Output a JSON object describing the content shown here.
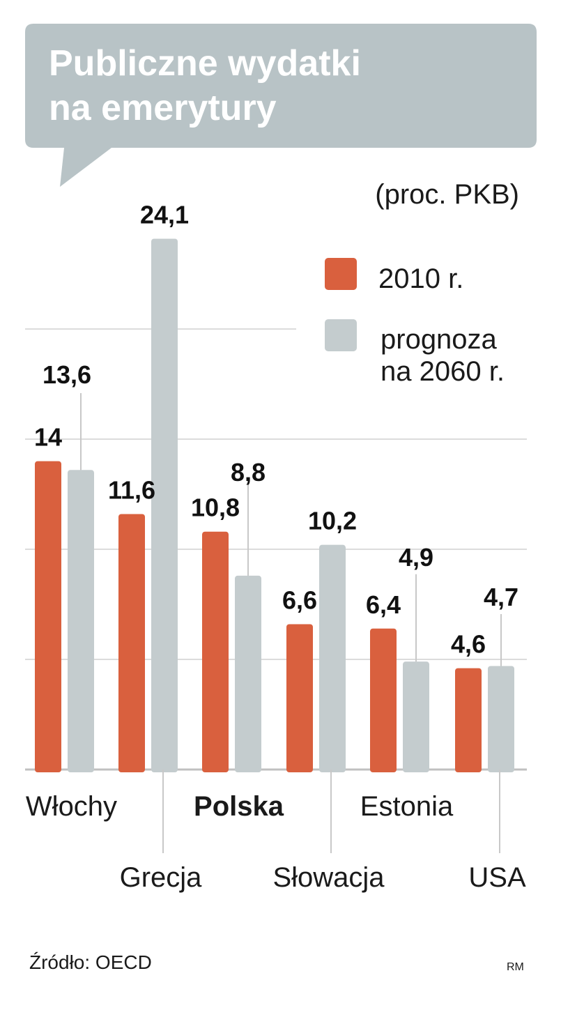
{
  "chart_data": {
    "type": "bar",
    "title_lines": [
      "Publiczne wydatki",
      "na emerytury"
    ],
    "unit": "(proc. PKB)",
    "categories": [
      "Włochy",
      "Grecja",
      "Polska",
      "Słowacja",
      "Estonia",
      "USA"
    ],
    "highlight_category": "Polska",
    "series": [
      {
        "name": "2010 r.",
        "color": "#d9603e",
        "values": [
          14,
          11.6,
          10.8,
          6.6,
          6.4,
          4.6
        ],
        "labels": [
          "14",
          "11,6",
          "10,8",
          "6,6",
          "6,4",
          "4,6"
        ]
      },
      {
        "name": "prognoza na 2060 r.",
        "legend_lines": [
          "prognoza",
          "na 2060 r."
        ],
        "color": "#c4ccce",
        "values": [
          13.6,
          24.1,
          8.8,
          10.2,
          4.9,
          4.7
        ],
        "labels": [
          "13,6",
          "24,1",
          "8,8",
          "10,2",
          "4,9",
          "4,7"
        ]
      }
    ],
    "ylim": [
      0,
      25
    ],
    "grid": true,
    "legend_position": "top-right"
  },
  "source": "Źródło: OECD",
  "credit": "RM",
  "colors": {
    "title_box": "#b8c3c6",
    "grid": "#dcdcdc",
    "label_line": "#c8c8c8",
    "axis": "#c0c0c0"
  }
}
